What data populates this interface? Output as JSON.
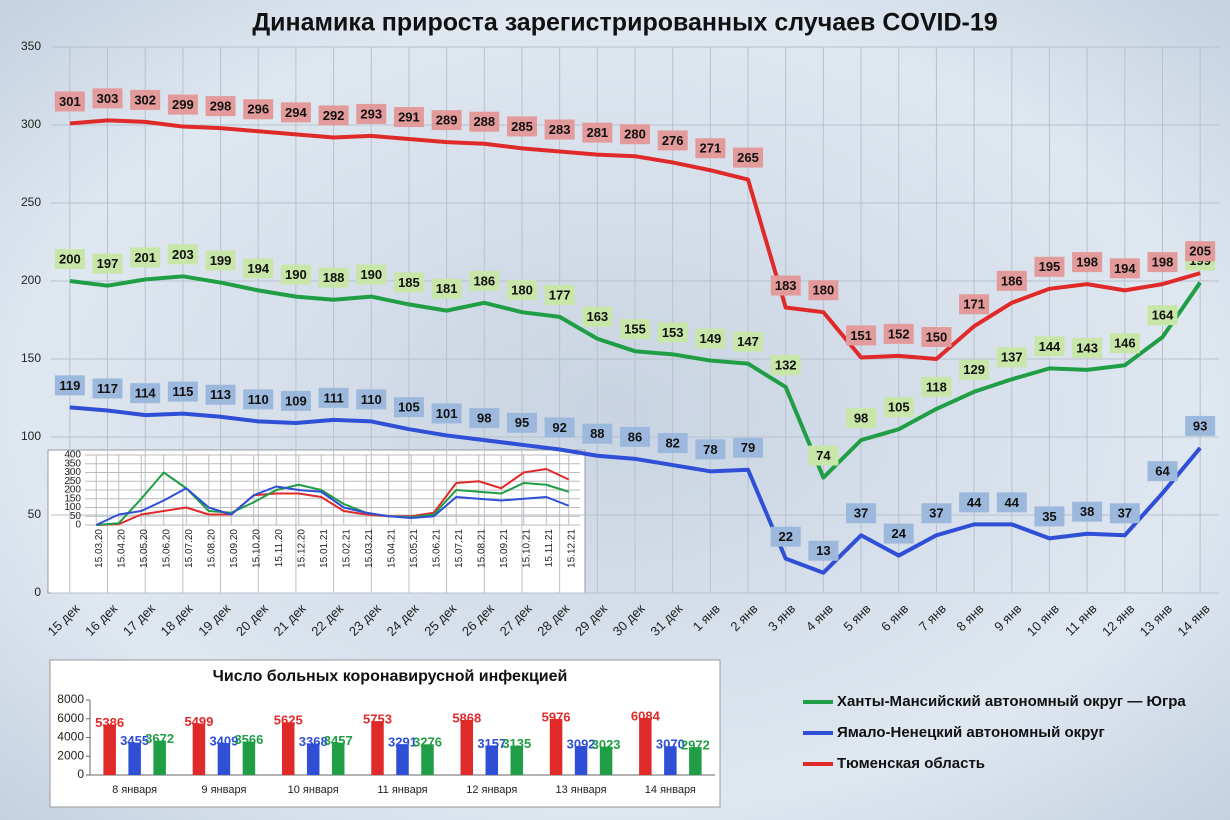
{
  "chart_data": [
    {
      "type": "line",
      "title": "Динамика прироста зарегистрированных случаев COVID-19",
      "categories": [
        "15 дек",
        "16 дек",
        "17 дек",
        "18 дек",
        "19 дек",
        "20 дек",
        "21 дек",
        "22 дек",
        "23 дек",
        "24 дек",
        "25 дек",
        "26 дек",
        "27 дек",
        "28 дек",
        "29 дек",
        "30 дек",
        "31 дек",
        "1 янв",
        "2 янв",
        "3 янв",
        "4 янв",
        "5 янв",
        "6 янв",
        "7 янв",
        "8 янв",
        "9 янв",
        "10 янв",
        "11 янв",
        "12 янв",
        "13 янв",
        "14 янв"
      ],
      "series": [
        {
          "name": "Ханты-Мансийский автономный округ — Югра",
          "color": "#1f9e45",
          "label_fill": "#c8e6a8",
          "values": [
            200,
            197,
            201,
            203,
            199,
            194,
            190,
            188,
            190,
            185,
            181,
            186,
            180,
            177,
            163,
            155,
            153,
            149,
            147,
            132,
            74,
            98,
            105,
            118,
            129,
            137,
            144,
            143,
            146,
            164,
            199
          ]
        },
        {
          "name": "Ямало-Ненецкий автономный округ",
          "color": "#2e4fd6",
          "label_fill": "#9db8dd",
          "values": [
            119,
            117,
            114,
            115,
            113,
            110,
            109,
            111,
            110,
            105,
            101,
            98,
            95,
            92,
            88,
            86,
            82,
            78,
            79,
            22,
            13,
            37,
            24,
            37,
            44,
            44,
            35,
            38,
            37,
            64,
            93
          ]
        },
        {
          "name": "Тюменская область",
          "color": "#e02a2a",
          "label_fill": "#e39a9a",
          "values": [
            301,
            303,
            302,
            299,
            298,
            296,
            294,
            292,
            293,
            291,
            289,
            288,
            285,
            283,
            281,
            280,
            276,
            271,
            265,
            183,
            180,
            151,
            152,
            150,
            171,
            186,
            195,
            198,
            194,
            198,
            205
          ]
        }
      ],
      "ylim": [
        0,
        350
      ],
      "yticks": [
        0,
        50,
        100,
        150,
        200,
        250,
        300,
        350
      ],
      "grid": true
    },
    {
      "type": "line",
      "categories": [
        "15.03.20",
        "15.04.20",
        "15.05.20",
        "15.06.20",
        "15.07.20",
        "15.08.20",
        "15.09.20",
        "15.10.20",
        "15.11.20",
        "15.12.20",
        "15.01.21",
        "15.02.21",
        "15.03.21",
        "15.04.21",
        "15.05.21",
        "15.06.21",
        "15.07.21",
        "15.08.21",
        "15.09.21",
        "15.10.21",
        "15.11.21",
        "15.12.21"
      ],
      "series": [
        {
          "color": "#e02a2a",
          "values": [
            0,
            5,
            60,
            80,
            100,
            60,
            60,
            170,
            180,
            180,
            160,
            80,
            60,
            50,
            50,
            70,
            240,
            250,
            210,
            300,
            320,
            260
          ]
        },
        {
          "color": "#1f9e45",
          "values": [
            0,
            10,
            150,
            300,
            210,
            80,
            70,
            130,
            200,
            230,
            200,
            120,
            70,
            50,
            45,
            60,
            200,
            190,
            180,
            240,
            230,
            190
          ]
        },
        {
          "color": "#2e4fd6",
          "values": [
            0,
            60,
            80,
            140,
            210,
            100,
            60,
            170,
            220,
            200,
            190,
            100,
            70,
            50,
            40,
            50,
            160,
            150,
            140,
            150,
            160,
            110
          ]
        }
      ],
      "ylim": [
        0,
        400
      ],
      "yticks": [
        0,
        50,
        100,
        150,
        200,
        250,
        300,
        350,
        400
      ],
      "grid": true
    },
    {
      "type": "bar",
      "title": "Число больных коронавирусной  инфекцией",
      "categories": [
        "8 января",
        "9 января",
        "10 января",
        "11 января",
        "12 января",
        "13 января",
        "14 января"
      ],
      "series": [
        {
          "color": "#e02a2a",
          "values": [
            5386,
            5499,
            5625,
            5753,
            5868,
            5976,
            6084
          ]
        },
        {
          "color": "#2e4fd6",
          "values": [
            3455,
            3409,
            3368,
            3291,
            3157,
            3092,
            3070
          ]
        },
        {
          "color": "#1f9e45",
          "values": [
            3672,
            3566,
            3457,
            3276,
            3135,
            3023,
            2972
          ]
        }
      ],
      "ylim": [
        0,
        8000
      ],
      "yticks": [
        0,
        2000,
        4000,
        6000,
        8000
      ],
      "grid": false
    }
  ]
}
